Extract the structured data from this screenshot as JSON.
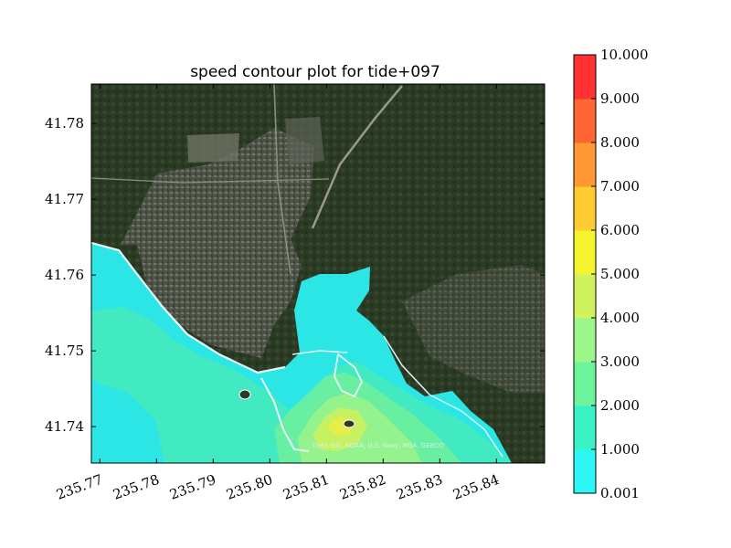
{
  "chart_data": {
    "type": "heatmap",
    "title": "speed contour plot for tide+097",
    "xlabel": "",
    "ylabel": "",
    "xlim": [
      235.7685,
      235.8485
    ],
    "ylim": [
      41.7352,
      41.7852
    ],
    "x_ticks": [
      "235.77",
      "235.78",
      "235.79",
      "235.80",
      "235.81",
      "235.82",
      "235.83",
      "235.84"
    ],
    "x_tick_values": [
      235.77,
      235.78,
      235.79,
      235.8,
      235.81,
      235.82,
      235.83,
      235.84
    ],
    "y_ticks": [
      "41.74",
      "41.75",
      "41.76",
      "41.77",
      "41.78"
    ],
    "y_tick_values": [
      41.74,
      41.75,
      41.76,
      41.77,
      41.78
    ],
    "basemap_attribution": "Data SIO, NOAA, U.S. Navy, NGA, GEBCO",
    "colorbar": {
      "levels": [
        0.001,
        1.0,
        2.0,
        3.0,
        4.0,
        5.0,
        6.0,
        7.0,
        8.0,
        9.0,
        10.0
      ],
      "labels": [
        "0.001",
        "1.000",
        "2.000",
        "3.000",
        "4.000",
        "5.000",
        "6.000",
        "7.000",
        "8.000",
        "9.000",
        "10.000"
      ],
      "colors": [
        "#2cf7f5",
        "#3bf1c6",
        "#6df39b",
        "#9ef58a",
        "#cef35c",
        "#f5f52f",
        "#ffcc33",
        "#ff9933",
        "#ff6633",
        "#ff3333"
      ]
    }
  }
}
